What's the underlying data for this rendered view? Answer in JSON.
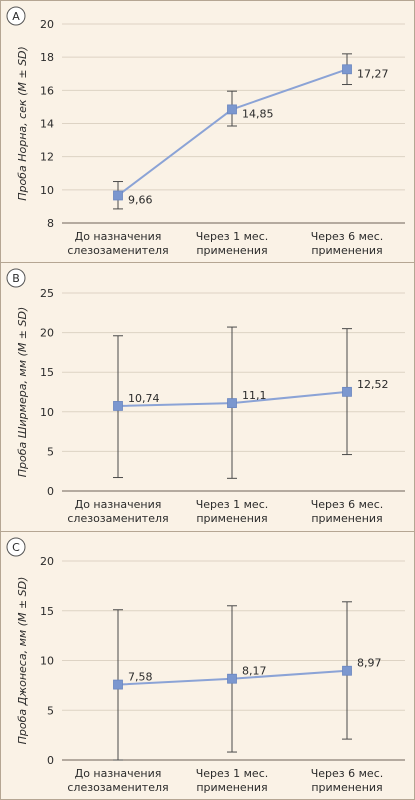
{
  "colors": {
    "background": "#faf2e6",
    "panel_border": "#b5a693",
    "gridline": "#ddd3c4",
    "axis": "#6e6358",
    "series_line": "#8ba3d6",
    "marker": "#7b97cf",
    "error_bar": "#4a4a4a",
    "text": "#2b2b2b"
  },
  "chart_data": [
    {
      "panel_label": "A",
      "type": "line",
      "ylabel": "Проба Норна, сек (M ± SD)",
      "ylim": [
        8,
        20
      ],
      "yticks": [
        8,
        10,
        12,
        14,
        16,
        18,
        20
      ],
      "categories": [
        [
          "До назначения",
          "слезозаменителя"
        ],
        [
          "Через 1 мес.",
          "применения"
        ],
        [
          "Через 6 мес.",
          "применения"
        ]
      ],
      "values": [
        9.66,
        14.85,
        17.27
      ],
      "value_labels": [
        "9,66",
        "14,85",
        "17,27"
      ],
      "error_low": [
        8.85,
        13.85,
        16.35
      ],
      "error_high": [
        10.5,
        15.95,
        18.2
      ],
      "grid": true
    },
    {
      "panel_label": "B",
      "type": "line",
      "ylabel": "Проба Ширмера, мм (M ± SD)",
      "ylim": [
        0,
        25
      ],
      "yticks": [
        0,
        5,
        10,
        15,
        20,
        25
      ],
      "categories": [
        [
          "До назначения",
          "слезозаменителя"
        ],
        [
          "Через 1 мес.",
          "применения"
        ],
        [
          "Через 6 мес.",
          "применения"
        ]
      ],
      "values": [
        10.74,
        11.1,
        12.52
      ],
      "value_labels": [
        "10,74",
        "11,1",
        "12,52"
      ],
      "error_low": [
        1.7,
        1.6,
        4.6
      ],
      "error_high": [
        19.6,
        20.7,
        20.5
      ],
      "grid": true
    },
    {
      "panel_label": "C",
      "type": "line",
      "ylabel": "Проба Джонеса, мм (M ± SD)",
      "ylim": [
        0,
        20
      ],
      "yticks": [
        0,
        5,
        10,
        15,
        20
      ],
      "categories": [
        [
          "До назначения",
          "слезозаменителя"
        ],
        [
          "Через 1 мес.",
          "применения"
        ],
        [
          "Через 6 мес.",
          "применения"
        ]
      ],
      "values": [
        7.58,
        8.17,
        8.97
      ],
      "value_labels": [
        "7,58",
        "8,17",
        "8,97"
      ],
      "error_low": [
        0,
        0.8,
        2.1
      ],
      "error_high": [
        15.1,
        15.5,
        15.9
      ],
      "grid": true
    }
  ]
}
